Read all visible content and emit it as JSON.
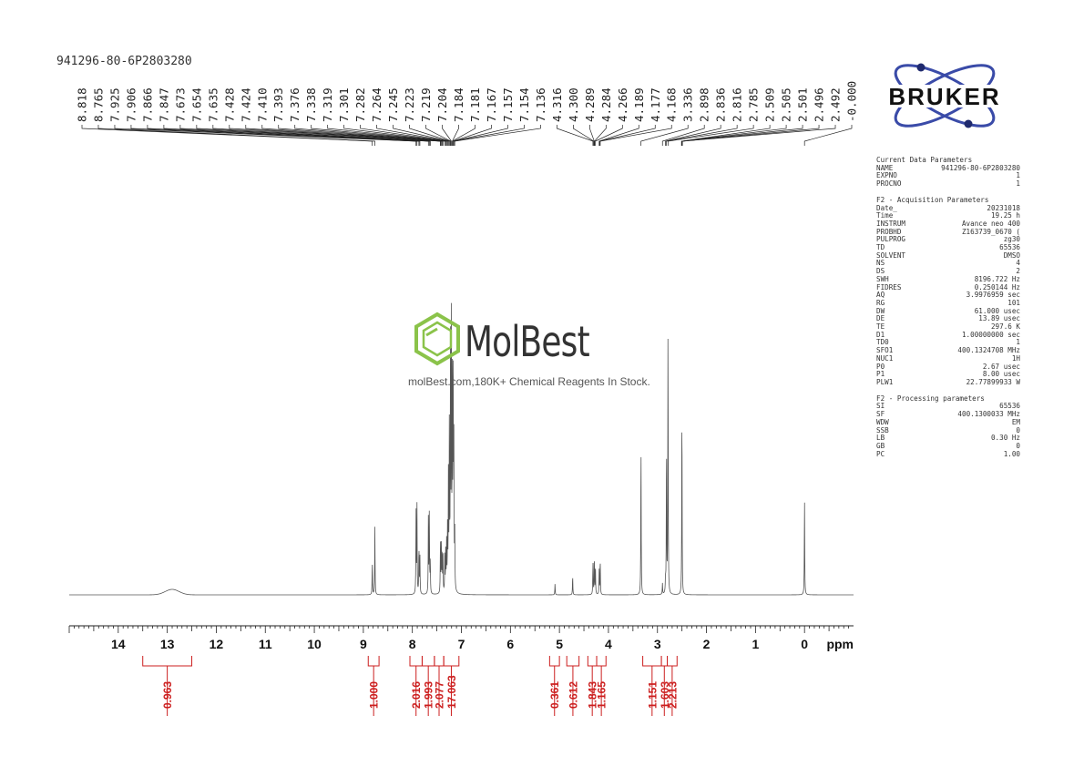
{
  "sample_id": "941296-80-6P2803280",
  "logo": {
    "brand": "BRUKER",
    "accent": "#2c3a8c",
    "dot": "#1f2a6e"
  },
  "watermark": {
    "brand": "MolBest",
    "tagline": "molBest.com,180K+ Chemical Reagents In Stock.",
    "icon": "hexagon-benzene-icon",
    "color": "#8bc34a"
  },
  "params": {
    "sections": [
      {
        "title": "Current Data Parameters",
        "rows": [
          [
            "NAME",
            "941296-80-6P2803280"
          ],
          [
            "EXPNO",
            "1"
          ],
          [
            "PROCNO",
            "1"
          ]
        ]
      },
      {
        "title": "F2 - Acquisition Parameters",
        "rows": [
          [
            "Date_",
            "20231018"
          ],
          [
            "Time",
            "19.25 h"
          ],
          [
            "INSTRUM",
            "Avance neo 400"
          ],
          [
            "PROBHD",
            "Z163739_0670 ("
          ],
          [
            "PULPROG",
            "zg30"
          ],
          [
            "TD",
            "65536"
          ],
          [
            "SOLVENT",
            "DMSO"
          ],
          [
            "NS",
            "4"
          ],
          [
            "DS",
            "2"
          ],
          [
            "SWH",
            "8196.722 Hz"
          ],
          [
            "FIDRES",
            "0.250144 Hz"
          ],
          [
            "AQ",
            "3.9976959 sec"
          ],
          [
            "RG",
            "101"
          ],
          [
            "DW",
            "61.000 usec"
          ],
          [
            "DE",
            "13.89 usec"
          ],
          [
            "TE",
            "297.6 K"
          ],
          [
            "D1",
            "1.00000000 sec"
          ],
          [
            "TD0",
            "1"
          ],
          [
            "SFO1",
            "400.1324708 MHz"
          ],
          [
            "NUC1",
            "1H"
          ],
          [
            "P0",
            "2.67 usec"
          ],
          [
            "P1",
            "8.00 usec"
          ],
          [
            "PLW1",
            "22.77899933 W"
          ]
        ]
      },
      {
        "title": "F2 - Processing parameters",
        "rows": [
          [
            "SI",
            "65536"
          ],
          [
            "SF",
            "400.1300033 MHz"
          ],
          [
            "WDW",
            "EM"
          ],
          [
            "SSB",
            "0"
          ],
          [
            "LB",
            "0.30 Hz"
          ],
          [
            "GB",
            "0"
          ],
          [
            "PC",
            "1.00"
          ]
        ]
      }
    ]
  },
  "chart_data": {
    "type": "line",
    "title": "941296-80-6P2803280",
    "xlabel": "ppm",
    "x_reversed": true,
    "xlim": [
      15.0,
      -1.0
    ],
    "x_ticks": [
      14,
      13,
      12,
      11,
      10,
      9,
      8,
      7,
      6,
      5,
      4,
      3,
      2,
      1,
      0
    ],
    "line_color": "#555555",
    "integral_color": "#cc1f1f",
    "peak_labels": [
      "8.818",
      "8.765",
      "7.925",
      "7.906",
      "7.866",
      "7.847",
      "7.673",
      "7.654",
      "7.635",
      "7.428",
      "7.424",
      "7.410",
      "7.393",
      "7.376",
      "7.338",
      "7.319",
      "7.301",
      "7.282",
      "7.264",
      "7.245",
      "7.223",
      "7.219",
      "7.204",
      "7.184",
      "7.181",
      "7.167",
      "7.157",
      "7.154",
      "7.136",
      "4.316",
      "4.300",
      "4.289",
      "4.284",
      "4.266",
      "4.189",
      "4.177",
      "4.168",
      "3.336",
      "2.898",
      "2.836",
      "2.816",
      "2.785",
      "2.509",
      "2.505",
      "2.501",
      "2.496",
      "2.492",
      "-0.000"
    ],
    "peaks": [
      {
        "ppm": 8.818,
        "height": 0.12
      },
      {
        "ppm": 8.765,
        "height": 0.25
      },
      {
        "ppm": 7.925,
        "height": 0.3
      },
      {
        "ppm": 7.906,
        "height": 0.32
      },
      {
        "ppm": 7.866,
        "height": 0.17
      },
      {
        "ppm": 7.847,
        "height": 0.15
      },
      {
        "ppm": 7.673,
        "height": 0.28
      },
      {
        "ppm": 7.654,
        "height": 0.3
      },
      {
        "ppm": 7.635,
        "height": 0.12
      },
      {
        "ppm": 7.428,
        "height": 0.18
      },
      {
        "ppm": 7.41,
        "height": 0.18
      },
      {
        "ppm": 7.393,
        "height": 0.15
      },
      {
        "ppm": 7.376,
        "height": 0.13
      },
      {
        "ppm": 7.338,
        "height": 0.14
      },
      {
        "ppm": 7.319,
        "height": 0.16
      },
      {
        "ppm": 7.301,
        "height": 0.18
      },
      {
        "ppm": 7.282,
        "height": 0.24
      },
      {
        "ppm": 7.264,
        "height": 0.42
      },
      {
        "ppm": 7.245,
        "height": 0.62
      },
      {
        "ppm": 7.223,
        "height": 0.88
      },
      {
        "ppm": 7.204,
        "height": 0.96
      },
      {
        "ppm": 7.184,
        "height": 0.86
      },
      {
        "ppm": 7.167,
        "height": 0.72
      },
      {
        "ppm": 7.154,
        "height": 0.52
      },
      {
        "ppm": 7.136,
        "height": 0.22
      },
      {
        "ppm": 5.09,
        "height": 0.04
      },
      {
        "ppm": 4.73,
        "height": 0.07
      },
      {
        "ppm": 4.316,
        "height": 0.12
      },
      {
        "ppm": 4.289,
        "height": 0.14
      },
      {
        "ppm": 4.266,
        "height": 0.11
      },
      {
        "ppm": 4.189,
        "height": 0.09
      },
      {
        "ppm": 4.168,
        "height": 0.13
      },
      {
        "ppm": 3.336,
        "height": 0.56
      },
      {
        "ppm": 2.898,
        "height": 0.04
      },
      {
        "ppm": 2.836,
        "height": 0.05
      },
      {
        "ppm": 2.816,
        "height": 0.55
      },
      {
        "ppm": 2.785,
        "height": 1.0
      },
      {
        "ppm": 2.501,
        "height": 0.7
      },
      {
        "ppm": -0.0,
        "height": 0.36
      }
    ],
    "broad_peaks": [
      {
        "ppm": 12.9,
        "height": 0.02,
        "width": 0.4
      }
    ],
    "integrals": [
      {
        "from": 13.5,
        "to": 12.5,
        "value": "0.963"
      },
      {
        "from": 8.9,
        "to": 8.68,
        "value": "1.000"
      },
      {
        "from": 8.05,
        "to": 7.8,
        "value": "2.016"
      },
      {
        "from": 7.8,
        "to": 7.55,
        "value": "1.993"
      },
      {
        "from": 7.55,
        "to": 7.36,
        "value": "2.077"
      },
      {
        "from": 7.36,
        "to": 7.05,
        "value": "17.063"
      },
      {
        "from": 5.2,
        "to": 5.0,
        "value": "0.361"
      },
      {
        "from": 4.85,
        "to": 4.6,
        "value": "0.612"
      },
      {
        "from": 4.42,
        "to": 4.24,
        "value": "1.843"
      },
      {
        "from": 4.24,
        "to": 4.05,
        "value": "1.165"
      },
      {
        "from": 3.3,
        "to": 2.92,
        "value": "1.151"
      },
      {
        "from": 2.92,
        "to": 2.8,
        "value": "1.603"
      },
      {
        "from": 2.8,
        "to": 2.6,
        "value": "2.213"
      }
    ]
  }
}
